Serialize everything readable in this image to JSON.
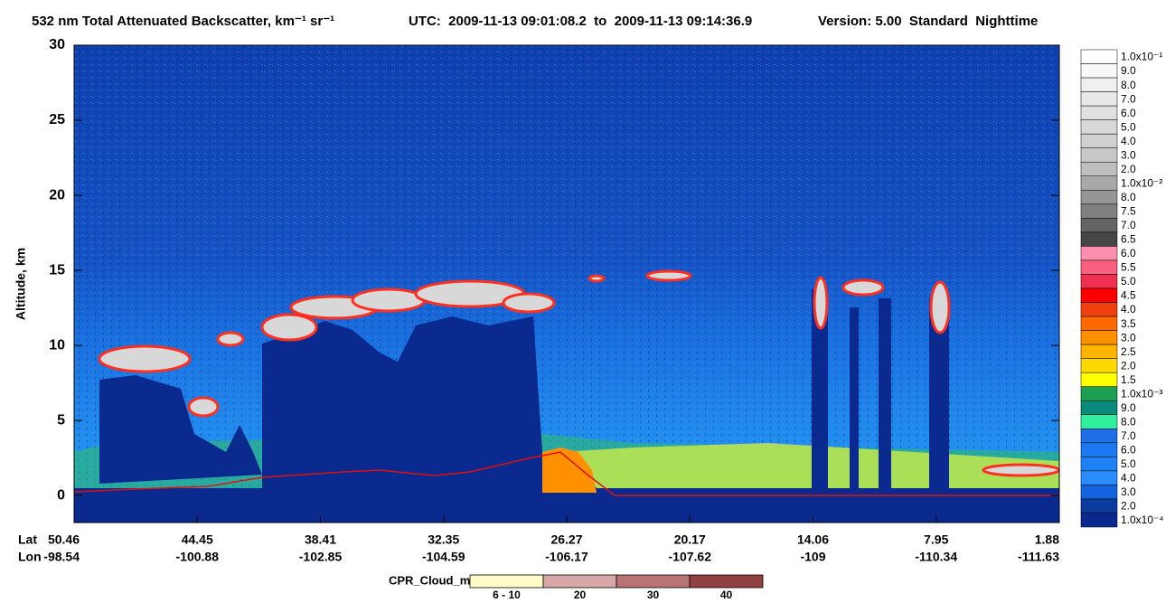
{
  "chart_data": {
    "type": "curtain",
    "title": "532 nm Total Attenuated Backscatter, km⁻¹ sr⁻¹",
    "utc": "UTC:  2009-11-13 09:01:08.2  to  2009-11-13 09:14:36.9",
    "version": "Version: 5.00  Standard  Nighttime",
    "ylabel": "Altitude, km",
    "ylim": [
      -1.8,
      30
    ],
    "yticks": [
      0,
      5,
      10,
      15,
      20,
      25,
      30
    ],
    "lat_label": "Lat",
    "lon_label": "Lon",
    "lat": [
      50.46,
      44.45,
      38.41,
      32.35,
      26.27,
      20.17,
      14.06,
      7.95,
      1.88
    ],
    "lon": [
      -98.54,
      -100.88,
      -102.85,
      -104.59,
      -106.17,
      -107.62,
      -109.0,
      -110.34,
      -111.63
    ],
    "colorbar": {
      "labels": [
        "1.0x10⁻¹",
        "9.0",
        "8.0",
        "7.0",
        "6.0",
        "5.0",
        "4.0",
        "3.0",
        "2.0",
        "1.0x10⁻²",
        "8.0",
        "7.5",
        "7.0",
        "6.5",
        "6.0",
        "5.5",
        "5.0",
        "4.5",
        "4.0",
        "3.5",
        "3.0",
        "2.5",
        "2.0",
        "1.5",
        "1.0x10⁻³",
        "9.0",
        "8.0",
        "7.0",
        "6.0",
        "5.0",
        "4.0",
        "3.0",
        "2.0",
        "1.0x10⁻⁴"
      ],
      "colors": [
        "#ffffff",
        "#f8f8f8",
        "#f0f0f0",
        "#e8e8e8",
        "#e0e0e0",
        "#d8d8d8",
        "#d0d0d0",
        "#c8c8c8",
        "#bebebe",
        "#a8a8a8",
        "#969696",
        "#808080",
        "#646464",
        "#464646",
        "#ff8fb0",
        "#f86080",
        "#f03050",
        "#ff0000",
        "#f04010",
        "#ff6a00",
        "#ff9000",
        "#ffb400",
        "#ffd800",
        "#ffff00",
        "#1e9e50",
        "#0a8a7a",
        "#30f0a0",
        "#1e6ee8",
        "#1a78f0",
        "#1e82f5",
        "#2a8cff",
        "#1464e0",
        "#0a3ca0",
        "#0a2890"
      ]
    },
    "cpr_legend": {
      "title": "CPR_Cloud_mask",
      "labels": [
        "6 - 10",
        "20",
        "30",
        "40"
      ],
      "colors": [
        "#fffbc8",
        "#d8a8a8",
        "#b87474",
        "#904040"
      ]
    }
  }
}
